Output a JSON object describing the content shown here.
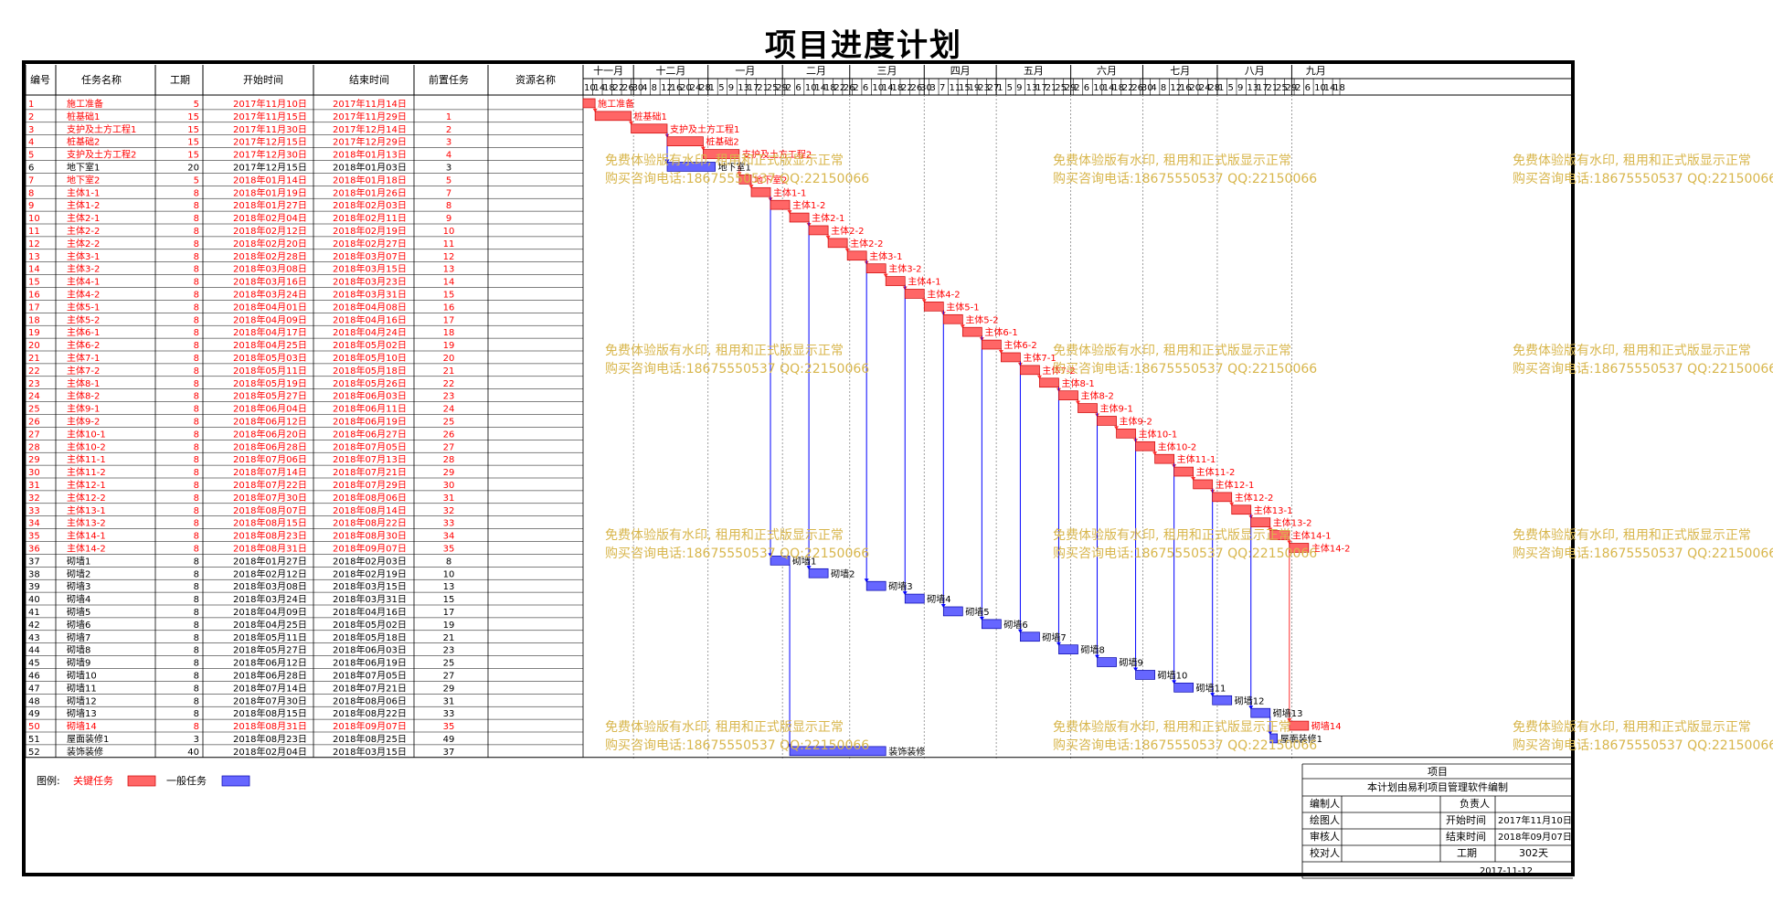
{
  "title": "项目进度计划",
  "columns": [
    "编号",
    "任务名称",
    "工期",
    "开始时间",
    "结束时间",
    "前置任务",
    "资源名称"
  ],
  "months": [
    "十一月",
    "十二月",
    "一月",
    "二月",
    "三月",
    "四月",
    "五月",
    "六月",
    "七月",
    "八月",
    "九月"
  ],
  "day_ticks": [
    [
      "10",
      "14",
      "18",
      "22",
      "26",
      "30"
    ],
    [
      "4",
      "8",
      "12",
      "16",
      "20",
      "24",
      "28"
    ],
    [
      "1",
      "5",
      "9",
      "13",
      "17",
      "21",
      "25",
      "29"
    ],
    [
      "2",
      "6",
      "10",
      "14",
      "18",
      "22",
      "26"
    ],
    [
      "2",
      "6",
      "10",
      "14",
      "18",
      "22",
      "26",
      "30"
    ],
    [
      "3",
      "7",
      "11",
      "15",
      "19",
      "23",
      "27"
    ],
    [
      "1",
      "5",
      "9",
      "13",
      "17",
      "21",
      "25",
      "29"
    ],
    [
      "2",
      "6",
      "10",
      "14",
      "18",
      "22",
      "26",
      "30"
    ],
    [
      "4",
      "8",
      "12",
      "16",
      "20",
      "24",
      "28"
    ],
    [
      "1",
      "5",
      "9",
      "13",
      "17",
      "21",
      "25",
      "29"
    ],
    [
      "2",
      "6",
      "10",
      "14",
      "18"
    ]
  ],
  "tasks": [
    {
      "id": "1",
      "name": "施工准备",
      "dur": "5",
      "start": "2017年11月10日",
      "end": "2017年11月14日",
      "pred": "",
      "critical": true
    },
    {
      "id": "2",
      "name": "桩基础1",
      "dur": "15",
      "start": "2017年11月15日",
      "end": "2017年11月29日",
      "pred": "1",
      "critical": true
    },
    {
      "id": "3",
      "name": "支护及土方工程1",
      "dur": "15",
      "start": "2017年11月30日",
      "end": "2017年12月14日",
      "pred": "2",
      "critical": true
    },
    {
      "id": "4",
      "name": "桩基础2",
      "dur": "15",
      "start": "2017年12月15日",
      "end": "2017年12月29日",
      "pred": "3",
      "critical": true
    },
    {
      "id": "5",
      "name": "支护及土方工程2",
      "dur": "15",
      "start": "2017年12月30日",
      "end": "2018年01月13日",
      "pred": "4",
      "critical": true
    },
    {
      "id": "6",
      "name": "地下室1",
      "dur": "20",
      "start": "2017年12月15日",
      "end": "2018年01月03日",
      "pred": "3",
      "critical": false
    },
    {
      "id": "7",
      "name": "地下室2",
      "dur": "5",
      "start": "2018年01月14日",
      "end": "2018年01月18日",
      "pred": "5",
      "critical": true
    },
    {
      "id": "8",
      "name": "主体1-1",
      "dur": "8",
      "start": "2018年01月19日",
      "end": "2018年01月26日",
      "pred": "7",
      "critical": true
    },
    {
      "id": "9",
      "name": "主体1-2",
      "dur": "8",
      "start": "2018年01月27日",
      "end": "2018年02月03日",
      "pred": "8",
      "critical": true
    },
    {
      "id": "10",
      "name": "主体2-1",
      "dur": "8",
      "start": "2018年02月04日",
      "end": "2018年02月11日",
      "pred": "9",
      "critical": true
    },
    {
      "id": "11",
      "name": "主体2-2",
      "dur": "8",
      "start": "2018年02月12日",
      "end": "2018年02月19日",
      "pred": "10",
      "critical": true
    },
    {
      "id": "12",
      "name": "主体2-2",
      "dur": "8",
      "start": "2018年02月20日",
      "end": "2018年02月27日",
      "pred": "11",
      "critical": true
    },
    {
      "id": "13",
      "name": "主体3-1",
      "dur": "8",
      "start": "2018年02月28日",
      "end": "2018年03月07日",
      "pred": "12",
      "critical": true
    },
    {
      "id": "14",
      "name": "主体3-2",
      "dur": "8",
      "start": "2018年03月08日",
      "end": "2018年03月15日",
      "pred": "13",
      "critical": true
    },
    {
      "id": "15",
      "name": "主体4-1",
      "dur": "8",
      "start": "2018年03月16日",
      "end": "2018年03月23日",
      "pred": "14",
      "critical": true
    },
    {
      "id": "16",
      "name": "主体4-2",
      "dur": "8",
      "start": "2018年03月24日",
      "end": "2018年03月31日",
      "pred": "15",
      "critical": true
    },
    {
      "id": "17",
      "name": "主体5-1",
      "dur": "8",
      "start": "2018年04月01日",
      "end": "2018年04月08日",
      "pred": "16",
      "critical": true
    },
    {
      "id": "18",
      "name": "主体5-2",
      "dur": "8",
      "start": "2018年04月09日",
      "end": "2018年04月16日",
      "pred": "17",
      "critical": true
    },
    {
      "id": "19",
      "name": "主体6-1",
      "dur": "8",
      "start": "2018年04月17日",
      "end": "2018年04月24日",
      "pred": "18",
      "critical": true
    },
    {
      "id": "20",
      "name": "主体6-2",
      "dur": "8",
      "start": "2018年04月25日",
      "end": "2018年05月02日",
      "pred": "19",
      "critical": true
    },
    {
      "id": "21",
      "name": "主体7-1",
      "dur": "8",
      "start": "2018年05月03日",
      "end": "2018年05月10日",
      "pred": "20",
      "critical": true
    },
    {
      "id": "22",
      "name": "主体7-2",
      "dur": "8",
      "start": "2018年05月11日",
      "end": "2018年05月18日",
      "pred": "21",
      "critical": true
    },
    {
      "id": "23",
      "name": "主体8-1",
      "dur": "8",
      "start": "2018年05月19日",
      "end": "2018年05月26日",
      "pred": "22",
      "critical": true
    },
    {
      "id": "24",
      "name": "主体8-2",
      "dur": "8",
      "start": "2018年05月27日",
      "end": "2018年06月03日",
      "pred": "23",
      "critical": true
    },
    {
      "id": "25",
      "name": "主体9-1",
      "dur": "8",
      "start": "2018年06月04日",
      "end": "2018年06月11日",
      "pred": "24",
      "critical": true
    },
    {
      "id": "26",
      "name": "主体9-2",
      "dur": "8",
      "start": "2018年06月12日",
      "end": "2018年06月19日",
      "pred": "25",
      "critical": true
    },
    {
      "id": "27",
      "name": "主体10-1",
      "dur": "8",
      "start": "2018年06月20日",
      "end": "2018年06月27日",
      "pred": "26",
      "critical": true
    },
    {
      "id": "28",
      "name": "主体10-2",
      "dur": "8",
      "start": "2018年06月28日",
      "end": "2018年07月05日",
      "pred": "27",
      "critical": true
    },
    {
      "id": "29",
      "name": "主体11-1",
      "dur": "8",
      "start": "2018年07月06日",
      "end": "2018年07月13日",
      "pred": "28",
      "critical": true
    },
    {
      "id": "30",
      "name": "主体11-2",
      "dur": "8",
      "start": "2018年07月14日",
      "end": "2018年07月21日",
      "pred": "29",
      "critical": true
    },
    {
      "id": "31",
      "name": "主体12-1",
      "dur": "8",
      "start": "2018年07月22日",
      "end": "2018年07月29日",
      "pred": "30",
      "critical": true
    },
    {
      "id": "32",
      "name": "主体12-2",
      "dur": "8",
      "start": "2018年07月30日",
      "end": "2018年08月06日",
      "pred": "31",
      "critical": true
    },
    {
      "id": "33",
      "name": "主体13-1",
      "dur": "8",
      "start": "2018年08月07日",
      "end": "2018年08月14日",
      "pred": "32",
      "critical": true
    },
    {
      "id": "34",
      "name": "主体13-2",
      "dur": "8",
      "start": "2018年08月15日",
      "end": "2018年08月22日",
      "pred": "33",
      "critical": true
    },
    {
      "id": "35",
      "name": "主体14-1",
      "dur": "8",
      "start": "2018年08月23日",
      "end": "2018年08月30日",
      "pred": "34",
      "critical": true
    },
    {
      "id": "36",
      "name": "主体14-2",
      "dur": "8",
      "start": "2018年08月31日",
      "end": "2018年09月07日",
      "pred": "35",
      "critical": true
    },
    {
      "id": "37",
      "name": "砌墙1",
      "dur": "8",
      "start": "2018年01月27日",
      "end": "2018年02月03日",
      "pred": "8",
      "critical": false
    },
    {
      "id": "38",
      "name": "砌墙2",
      "dur": "8",
      "start": "2018年02月12日",
      "end": "2018年02月19日",
      "pred": "10",
      "critical": false
    },
    {
      "id": "39",
      "name": "砌墙3",
      "dur": "8",
      "start": "2018年03月08日",
      "end": "2018年03月15日",
      "pred": "13",
      "critical": false
    },
    {
      "id": "40",
      "name": "砌墙4",
      "dur": "8",
      "start": "2018年03月24日",
      "end": "2018年03月31日",
      "pred": "15",
      "critical": false
    },
    {
      "id": "41",
      "name": "砌墙5",
      "dur": "8",
      "start": "2018年04月09日",
      "end": "2018年04月16日",
      "pred": "17",
      "critical": false
    },
    {
      "id": "42",
      "name": "砌墙6",
      "dur": "8",
      "start": "2018年04月25日",
      "end": "2018年05月02日",
      "pred": "19",
      "critical": false
    },
    {
      "id": "43",
      "name": "砌墙7",
      "dur": "8",
      "start": "2018年05月11日",
      "end": "2018年05月18日",
      "pred": "21",
      "critical": false
    },
    {
      "id": "44",
      "name": "砌墙8",
      "dur": "8",
      "start": "2018年05月27日",
      "end": "2018年06月03日",
      "pred": "23",
      "critical": false
    },
    {
      "id": "45",
      "name": "砌墙9",
      "dur": "8",
      "start": "2018年06月12日",
      "end": "2018年06月19日",
      "pred": "25",
      "critical": false
    },
    {
      "id": "46",
      "name": "砌墙10",
      "dur": "8",
      "start": "2018年06月28日",
      "end": "2018年07月05日",
      "pred": "27",
      "critical": false
    },
    {
      "id": "47",
      "name": "砌墙11",
      "dur": "8",
      "start": "2018年07月14日",
      "end": "2018年07月21日",
      "pred": "29",
      "critical": false
    },
    {
      "id": "48",
      "name": "砌墙12",
      "dur": "8",
      "start": "2018年07月30日",
      "end": "2018年08月06日",
      "pred": "31",
      "critical": false
    },
    {
      "id": "49",
      "name": "砌墙13",
      "dur": "8",
      "start": "2018年08月15日",
      "end": "2018年08月22日",
      "pred": "33",
      "critical": false
    },
    {
      "id": "50",
      "name": "砌墙14",
      "dur": "8",
      "start": "2018年08月31日",
      "end": "2018年09月07日",
      "pred": "35",
      "critical": true
    },
    {
      "id": "51",
      "name": "屋面装修1",
      "dur": "3",
      "start": "2018年08月23日",
      "end": "2018年08月25日",
      "pred": "49",
      "critical": false
    },
    {
      "id": "52",
      "name": "装饰装修",
      "dur": "40",
      "start": "2018年02月04日",
      "end": "2018年03月15日",
      "pred": "37",
      "critical": false
    }
  ],
  "legend": {
    "label": "图例:",
    "critical": "关键任务",
    "normal": "一般任务"
  },
  "watermark": {
    "line1": "免费体验版有水印, 租用和正式版显示正常",
    "line2": "购买咨询电话:18675550537 QQ:22150066"
  },
  "info": {
    "project": "项目",
    "note": "本计划由易利项目管理软件编制",
    "editor": "编制人",
    "owner": "负责人",
    "drawer": "绘图人",
    "start_label": "开始时间",
    "start": "2017年11月10日",
    "reviewer": "审核人",
    "end_label": "结束时间",
    "end": "2018年09月07日",
    "checker": "校对人",
    "dur_label": "工期",
    "dur": "302天",
    "date": "2017-11-12"
  },
  "colors": {
    "critical": "#ff6666",
    "normal": "#6666ff",
    "critical_text": "#ff0000",
    "link": "#0000ff",
    "watermark": "#d8b64c"
  }
}
